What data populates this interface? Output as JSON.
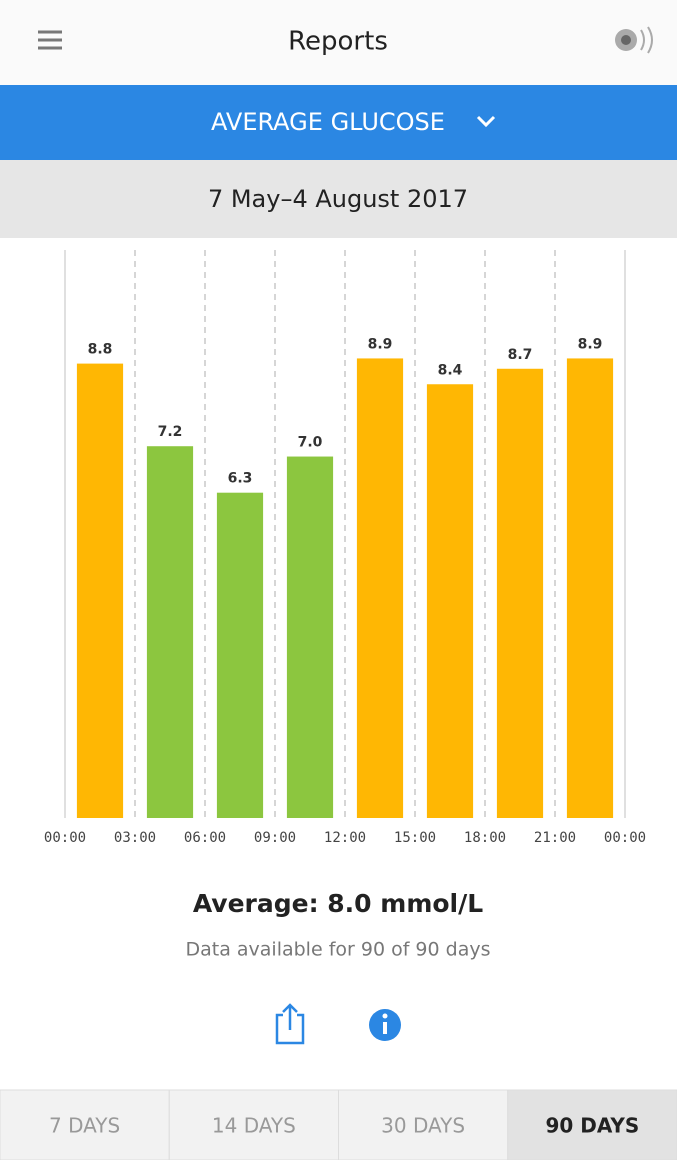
{
  "header": {
    "title": "Reports"
  },
  "report_selector": "AVERAGE GLUCOSE",
  "date_range": "7 May–4 August 2017",
  "chart_data": {
    "type": "bar",
    "values": [
      8.8,
      7.2,
      6.3,
      7.0,
      8.9,
      8.4,
      8.7,
      8.9
    ],
    "value_labels": [
      "8.8",
      "7.2",
      "6.3",
      "7.0",
      "8.9",
      "8.4",
      "8.7",
      "8.9"
    ],
    "colors": [
      "#ffb703",
      "#8cc63f",
      "#8cc63f",
      "#8cc63f",
      "#ffb703",
      "#ffb703",
      "#ffb703",
      "#ffb703"
    ],
    "xlim": [
      0,
      24
    ],
    "xticks": [
      {
        "value": 0,
        "label": "00:00"
      },
      {
        "value": 3,
        "label": "03:00"
      },
      {
        "value": 6,
        "label": "06:00"
      },
      {
        "value": 9,
        "label": "09:00"
      },
      {
        "value": 12,
        "label": "12:00"
      },
      {
        "value": 15,
        "label": "15:00"
      },
      {
        "value": 18,
        "label": "18:00"
      },
      {
        "value": 21,
        "label": "21:00"
      },
      {
        "value": 24,
        "label": "00:00"
      }
    ],
    "ylim": [
      0,
      11
    ],
    "grid": true
  },
  "summary": {
    "average": "Average: 8.0 mmol/L",
    "availability": "Data available for 90 of 90 days"
  },
  "tabs": [
    "7 DAYS",
    "14 DAYS",
    "30 DAYS",
    "90 DAYS"
  ],
  "selected_tab": 3
}
